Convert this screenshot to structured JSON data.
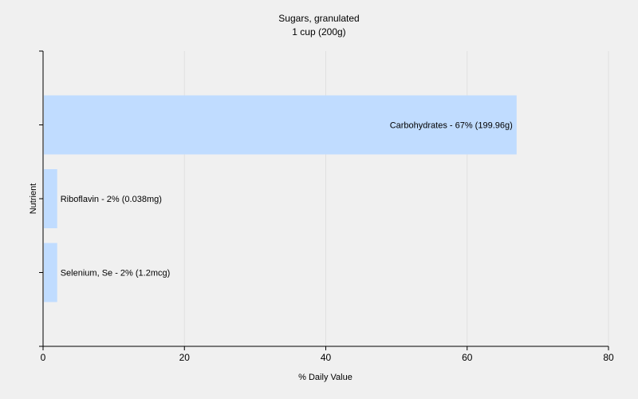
{
  "chart_data": {
    "type": "bar",
    "orientation": "horizontal",
    "title": "Sugars, granulated",
    "subtitle": "1 cup (200g)",
    "xlabel": "% Daily Value",
    "ylabel": "Nutrient",
    "xlim": [
      0,
      80
    ],
    "xticks": [
      0,
      20,
      40,
      60,
      80
    ],
    "grid": true,
    "bar_color": "#c0dcff",
    "categories": [
      "Carbohydrates",
      "Riboflavin",
      "Selenium, Se"
    ],
    "values": [
      67,
      2,
      2
    ],
    "labels": [
      "Carbohydrates - 67% (199.96g)",
      "Riboflavin - 2% (0.038mg)",
      "Selenium, Se - 2% (1.2mcg)"
    ]
  }
}
